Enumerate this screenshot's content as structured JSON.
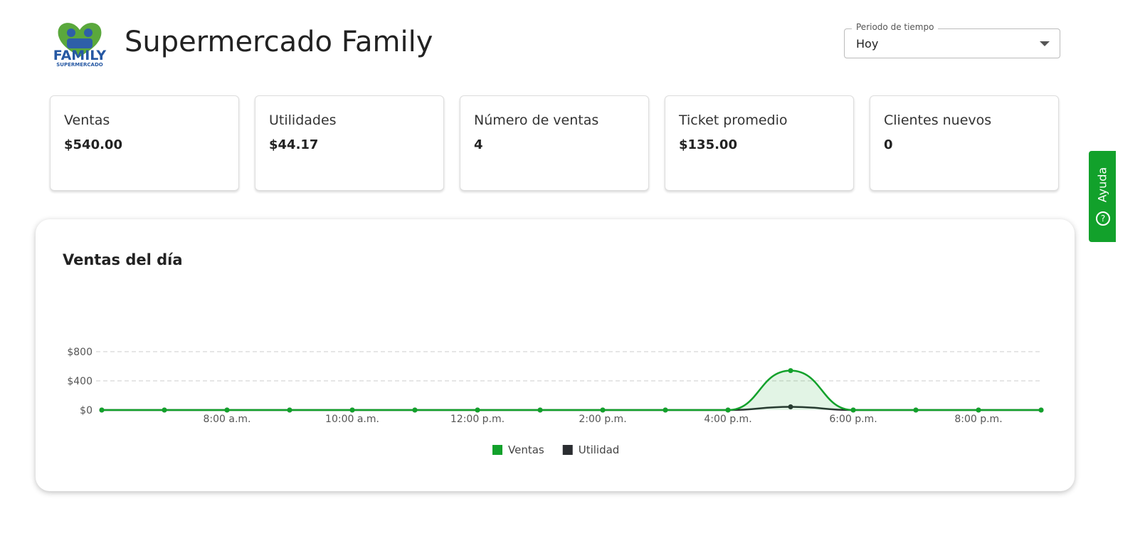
{
  "header": {
    "logo_top": "FAMILY",
    "logo_bottom": "SUPERMERCADO",
    "title": "Supermercado Family"
  },
  "period": {
    "label": "Periodo de tiempo",
    "value": "Hoy"
  },
  "help": {
    "label": "Ayuda"
  },
  "cards": [
    {
      "label": "Ventas",
      "value": "$540.00"
    },
    {
      "label": "Utilidades",
      "value": "$44.17"
    },
    {
      "label": "Número de ventas",
      "value": "4"
    },
    {
      "label": "Ticket promedio",
      "value": "$135.00"
    },
    {
      "label": "Clientes nuevos",
      "value": "0"
    }
  ],
  "chart_data": {
    "type": "line",
    "title": "Ventas del día",
    "categories": [
      null,
      null,
      "8:00 a.m.",
      null,
      "10:00 a.m.",
      null,
      "12:00 p.m.",
      null,
      "2:00 p.m.",
      null,
      "4:00 p.m.",
      null,
      "6:00 p.m.",
      null,
      "8:00 p.m.",
      null
    ],
    "series": [
      {
        "name": "Ventas",
        "color": "#12a12b",
        "area": true,
        "values": [
          0,
          0,
          0,
          0,
          0,
          0,
          0,
          0,
          0,
          0,
          0,
          540,
          0,
          0,
          0,
          0
        ]
      },
      {
        "name": "Utilidad",
        "color": "#2b2d31",
        "area": false,
        "values": [
          0,
          0,
          0,
          0,
          0,
          0,
          0,
          0,
          0,
          0,
          0,
          44.17,
          0,
          0,
          0,
          0
        ]
      }
    ],
    "ylim": [
      0,
      800
    ],
    "yticks": [
      {
        "value": 0,
        "label": "$0"
      },
      {
        "value": 400,
        "label": "$400"
      },
      {
        "value": 800,
        "label": "$800"
      }
    ],
    "grid": true,
    "legend": "bottom"
  }
}
